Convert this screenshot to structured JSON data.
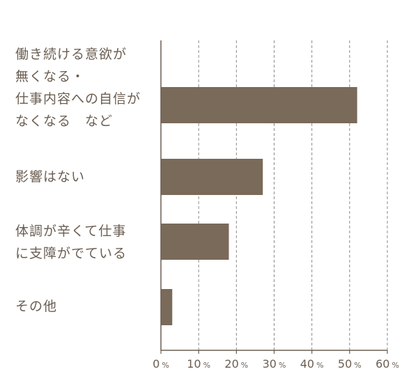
{
  "chart_data": {
    "type": "bar",
    "orientation": "horizontal",
    "categories": [
      "働き続ける意欲が\n無くなる・\n仕事内容への自信が\nなくなる　など",
      "影響はない",
      "体調が辛くて仕事\nに支障がでている",
      "その他"
    ],
    "values": [
      52,
      27,
      18,
      3
    ],
    "xlim": [
      0,
      60
    ],
    "ticks": [
      0,
      10,
      20,
      30,
      40,
      50,
      60
    ],
    "tick_unit": "%",
    "grid": true,
    "title": "",
    "xlabel": "",
    "ylabel": "",
    "colors": {
      "bar": "#7a6a59",
      "axis": "#6b5e52",
      "grid": "#8a8a8a",
      "text": "#6b5e52"
    }
  }
}
